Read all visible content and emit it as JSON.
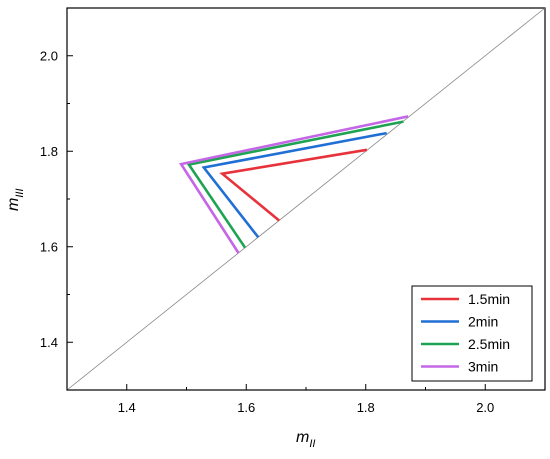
{
  "chart_data": {
    "type": "line",
    "xlabel": "m",
    "xlabel_sub": "II",
    "ylabel": "m",
    "ylabel_sub": "III",
    "xlim": [
      1.3,
      2.1
    ],
    "ylim": [
      1.3,
      2.1
    ],
    "x_ticks": [
      "1.4",
      "1.6",
      "1.8",
      "2.0"
    ],
    "y_ticks": [
      "1.4",
      "1.6",
      "1.8",
      "2.0"
    ],
    "reference_line": "y = x",
    "legend_position": "bottom-right",
    "series": [
      {
        "name": "1.5min",
        "color": "#e8323b",
        "x": [
          1.655,
          1.56,
          1.802
        ],
        "y": [
          1.655,
          1.753,
          1.803
        ]
      },
      {
        "name": "2min",
        "color": "#1f6fd4",
        "x": [
          1.62,
          1.529,
          1.835
        ],
        "y": [
          1.62,
          1.766,
          1.838
        ]
      },
      {
        "name": "2.5min",
        "color": "#1ea352",
        "x": [
          1.598,
          1.504,
          1.863
        ],
        "y": [
          1.598,
          1.772,
          1.862
        ]
      },
      {
        "name": "3min",
        "color": "#c466e6",
        "x": [
          1.587,
          1.491,
          1.871
        ],
        "y": [
          1.587,
          1.773,
          1.873
        ]
      }
    ]
  }
}
